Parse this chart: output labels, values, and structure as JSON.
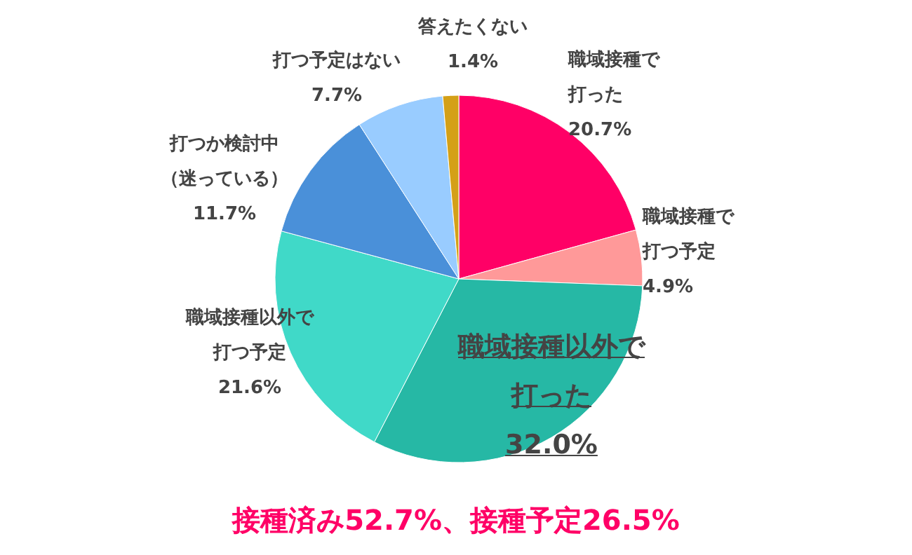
{
  "chart_data": {
    "type": "pie",
    "categories": [
      "職域接種で打った",
      "職域接種で打つ予定",
      "職域接種以外で打った",
      "職域接種以外で打つ予定",
      "打つか検討中（迷っている）",
      "打つ予定はない",
      "答えたくない"
    ],
    "values": [
      20.7,
      4.9,
      32.0,
      21.6,
      11.7,
      7.7,
      1.4
    ],
    "value_labels": [
      "20.7%",
      "4.9%",
      "32.0%",
      "21.6%",
      "11.7%",
      "7.7%",
      "1.4%"
    ],
    "colors": [
      "#ff0066",
      "#ff9999",
      "#26b8a5",
      "#40d9c8",
      "#4a90d9",
      "#99ccff",
      "#d4a017"
    ],
    "annotations": [
      "接種済み52.7%、接種予定26.5%"
    ]
  }
}
